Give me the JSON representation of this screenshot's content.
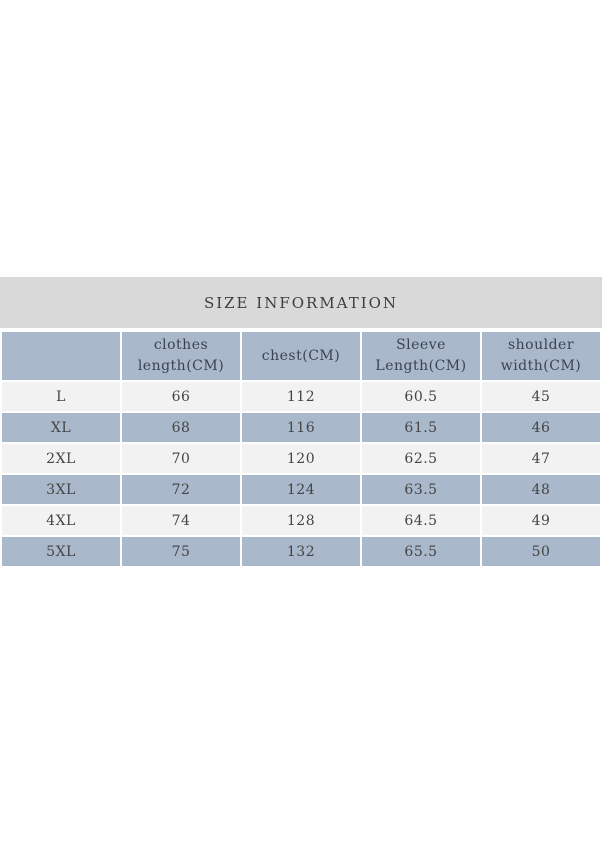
{
  "colors": {
    "page_bg": "#ffffff",
    "title_band_bg": "#d9d9d9",
    "header_bg": "#a9b8ca",
    "row_blue_bg": "#a9b8ca",
    "row_light_bg": "#f2f2f2",
    "text": "#3d3d3d",
    "gridline": "#ffffff"
  },
  "chart_data": {
    "type": "table",
    "title": "SIZE INFORMATION",
    "columns": [
      "",
      "clothes length(CM)",
      "chest(CM)",
      "Sleeve Length(CM)",
      "shoulder width(CM)"
    ],
    "rows": [
      [
        "L",
        "66",
        "112",
        "60.5",
        "45"
      ],
      [
        "XL",
        "68",
        "116",
        "61.5",
        "46"
      ],
      [
        "2XL",
        "70",
        "120",
        "62.5",
        "47"
      ],
      [
        "3XL",
        "72",
        "124",
        "63.5",
        "48"
      ],
      [
        "4XL",
        "74",
        "128",
        "64.5",
        "49"
      ],
      [
        "5XL",
        "75",
        "132",
        "65.5",
        "50"
      ]
    ],
    "layout": {
      "row_shading": "alternating: light (#f2f2f2) and blue (#a9b8ca), starting light",
      "gridlines": "2px white between all cells",
      "grid": "on"
    }
  },
  "table": {
    "title": "SIZE INFORMATION",
    "header": [
      {
        "l1": "",
        "l2": ""
      },
      {
        "l1": "clothes",
        "l2": "length(CM)"
      },
      {
        "l1": "chest(CM)",
        "l2": ""
      },
      {
        "l1": "Sleeve",
        "l2": "Length(CM)"
      },
      {
        "l1": "shoulder",
        "l2": "width(CM)"
      }
    ],
    "rows": [
      {
        "size": "L",
        "clothes_length": "66",
        "chest": "112",
        "sleeve_length": "60.5",
        "shoulder_width": "45"
      },
      {
        "size": "XL",
        "clothes_length": "68",
        "chest": "116",
        "sleeve_length": "61.5",
        "shoulder_width": "46"
      },
      {
        "size": "2XL",
        "clothes_length": "70",
        "chest": "120",
        "sleeve_length": "62.5",
        "shoulder_width": "47"
      },
      {
        "size": "3XL",
        "clothes_length": "72",
        "chest": "124",
        "sleeve_length": "63.5",
        "shoulder_width": "48"
      },
      {
        "size": "4XL",
        "clothes_length": "74",
        "chest": "128",
        "sleeve_length": "64.5",
        "shoulder_width": "49"
      },
      {
        "size": "5XL",
        "clothes_length": "75",
        "chest": "132",
        "sleeve_length": "65.5",
        "shoulder_width": "50"
      }
    ]
  }
}
